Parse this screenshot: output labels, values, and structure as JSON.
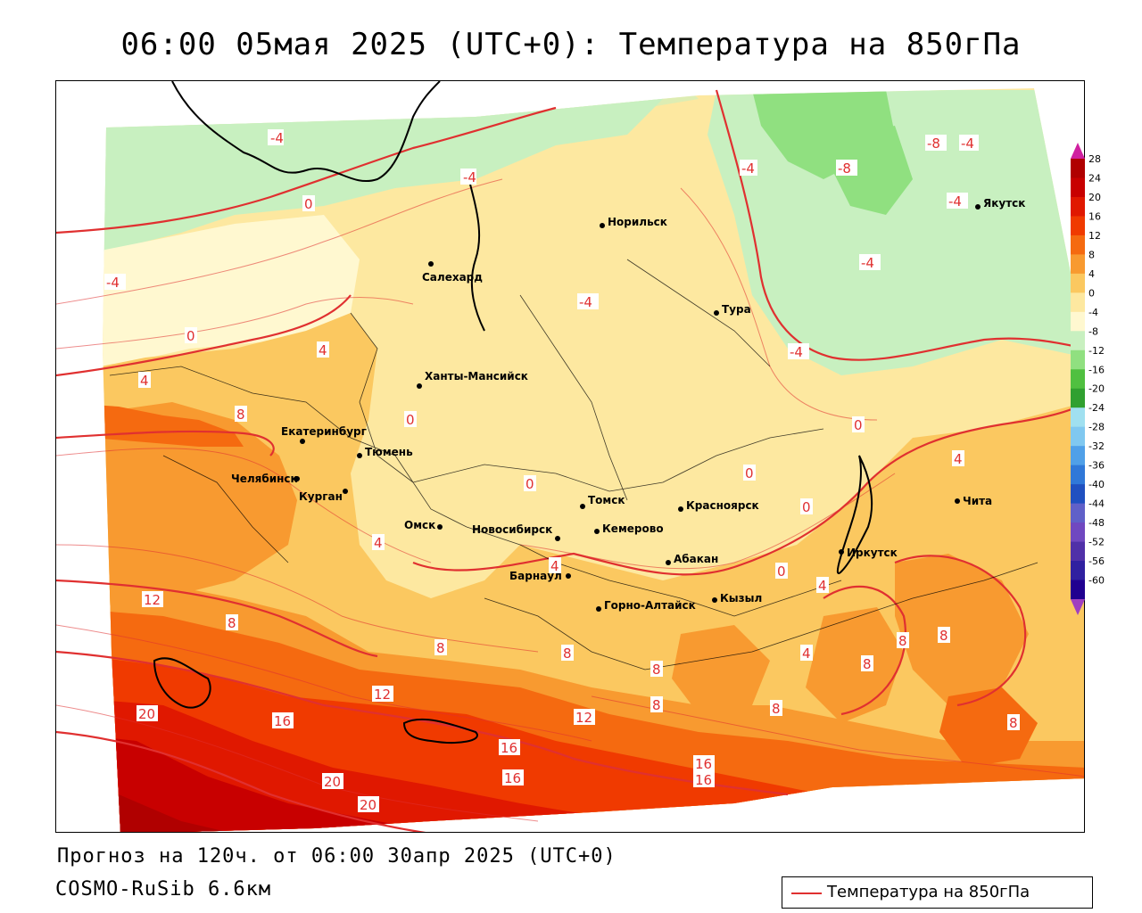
{
  "title": "06:00 05мая 2025 (UTC+0): Температура на 850гПа",
  "footer": {
    "forecast": "Прогноз на 120ч. от 06:00 30апр 2025 (UTC+0)",
    "model": "COSMO-RuSib 6.6км"
  },
  "legend": {
    "label": "Температура на 850гПа",
    "color": "#e03030"
  },
  "colorbar": {
    "labels": [
      "28",
      "24",
      "20",
      "16",
      "12",
      "8",
      "4",
      "0",
      "-4",
      "-8",
      "-12",
      "-16",
      "-20",
      "-24",
      "-28",
      "-32",
      "-36",
      "-40",
      "-44",
      "-48",
      "-52",
      "-56",
      "-60"
    ],
    "colors": [
      "#b00000",
      "#c80000",
      "#e01800",
      "#f03a00",
      "#f56a10",
      "#f89a30",
      "#fbc860",
      "#fde8a0",
      "#fff8d0",
      "#c8f0c0",
      "#90e080",
      "#50c040",
      "#30a030",
      "#a0e0f0",
      "#80c8f0",
      "#50a0e8",
      "#3078d8",
      "#2050c0",
      "#6060c8",
      "#7048c0",
      "#5030a8",
      "#3020a0",
      "#200090"
    ],
    "top_arrow_color": "#d020a0",
    "bottom_arrow_color": "#a040c0"
  },
  "cities": [
    {
      "name": "Норильск"
    },
    {
      "name": "Якутск"
    },
    {
      "name": "Салехард"
    },
    {
      "name": "Тура"
    },
    {
      "name": "Ханты-Мансийск"
    },
    {
      "name": "Екатеринбург"
    },
    {
      "name": "Тюмень"
    },
    {
      "name": "Челябинск"
    },
    {
      "name": "Курган"
    },
    {
      "name": "Омск"
    },
    {
      "name": "Новосибирск"
    },
    {
      "name": "Томск"
    },
    {
      "name": "Красноярск"
    },
    {
      "name": "Кемерово"
    },
    {
      "name": "Барнаул"
    },
    {
      "name": "Абакан"
    },
    {
      "name": "Иркутск"
    },
    {
      "name": "Чита"
    },
    {
      "name": "Горно-Алтайск"
    },
    {
      "name": "Кызыл"
    }
  ],
  "contour_labels": [
    "-4",
    "-4",
    "-4",
    "-8",
    "-4",
    "-8",
    "-4",
    "-4",
    "-4",
    "-4",
    "-4",
    "0",
    "0",
    "4",
    "4",
    "8",
    "0",
    "0",
    "0",
    "0",
    "0",
    "4",
    "4",
    "4",
    "4",
    "12",
    "8",
    "8",
    "8",
    "12",
    "12",
    "20",
    "16",
    "16",
    "16",
    "16",
    "20",
    "20",
    "8",
    "8",
    "8",
    "8",
    "8",
    "8",
    "8",
    "0",
    "4",
    "16"
  ]
}
